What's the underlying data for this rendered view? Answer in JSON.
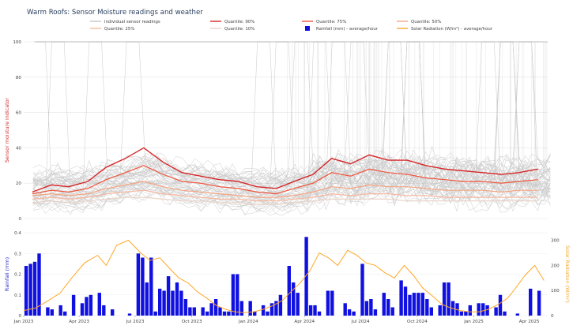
{
  "title": "Warm Roofs: Sensor Moisture readings and weather",
  "colors": {
    "q90": "#d62728",
    "q75": "#ef553b",
    "q50": "#f4a582",
    "q25": "#f7b9a0",
    "q10": "#e8d4c8",
    "individual": "#9e9e9e",
    "rain": "#1010e0",
    "solar": "#ffa726",
    "left_axis": "#d62728",
    "rain_axis": "#1f1fcc",
    "solar_axis": "#f5a623"
  },
  "legend": [
    {
      "label": "individual sensor readings",
      "kind": "line",
      "color_key": "individual"
    },
    {
      "label": "Quantile: 90%",
      "kind": "line",
      "color_key": "q90"
    },
    {
      "label": "Quantile: 75%",
      "kind": "line",
      "color_key": "q75"
    },
    {
      "label": "Quantile: 50%",
      "kind": "line",
      "color_key": "q50"
    },
    {
      "label": "Quantile: 25%",
      "kind": "line",
      "color_key": "q25"
    },
    {
      "label": "Quantile: 10%",
      "kind": "line",
      "color_key": "q10"
    },
    {
      "label": "Rainfall (mm) - average/hour",
      "kind": "square",
      "color_key": "rain"
    },
    {
      "label": "Solar Radiation (W/m²) - average/hour",
      "kind": "line",
      "color_key": "solar"
    }
  ],
  "chart_data": [
    {
      "type": "line",
      "ylabel": "Sensor moisture indicator",
      "ylim": [
        0,
        100
      ],
      "yticks": [
        "0",
        "20",
        "40",
        "60",
        "80",
        "100"
      ],
      "x_range": [
        "2023-01-01",
        "2025-05-01"
      ],
      "series": [
        {
          "name": "Quantile: 90%",
          "x": [
            "2023-01",
            "2023-02",
            "2023-03",
            "2023-04",
            "2023-05",
            "2023-06",
            "2023-07",
            "2023-08",
            "2023-09",
            "2023-10",
            "2023-11",
            "2023-12",
            "2024-01",
            "2024-02",
            "2024-03",
            "2024-04",
            "2024-05",
            "2024-06",
            "2024-07",
            "2024-08",
            "2024-09",
            "2024-10",
            "2024-11",
            "2024-12",
            "2025-01",
            "2025-02",
            "2025-03",
            "2025-04"
          ],
          "y": [
            15,
            19,
            18,
            21,
            29,
            34,
            40,
            32,
            26,
            24,
            22,
            21,
            18,
            17,
            21,
            25,
            34,
            31,
            36,
            33,
            33,
            30,
            28,
            27,
            26,
            25,
            26,
            28
          ]
        },
        {
          "name": "Quantile: 75%",
          "x": [
            "2023-01",
            "2023-02",
            "2023-03",
            "2023-04",
            "2023-05",
            "2023-06",
            "2023-07",
            "2023-08",
            "2023-09",
            "2023-10",
            "2023-11",
            "2023-12",
            "2024-01",
            "2024-02",
            "2024-03",
            "2024-04",
            "2024-05",
            "2024-06",
            "2024-07",
            "2024-08",
            "2024-09",
            "2024-10",
            "2024-11",
            "2024-12",
            "2025-01",
            "2025-02",
            "2025-03",
            "2025-04"
          ],
          "y": [
            14,
            16,
            15,
            17,
            22,
            26,
            30,
            25,
            21,
            20,
            18,
            17,
            15,
            14,
            17,
            20,
            26,
            24,
            28,
            26,
            25,
            23,
            22,
            21,
            21,
            20,
            21,
            22
          ]
        },
        {
          "name": "Quantile: 50%",
          "x": [
            "2023-01",
            "2023-02",
            "2023-03",
            "2023-04",
            "2023-05",
            "2023-06",
            "2023-07",
            "2023-08",
            "2023-09",
            "2023-10",
            "2023-11",
            "2023-12",
            "2024-01",
            "2024-02",
            "2024-03",
            "2024-04",
            "2024-05",
            "2024-06",
            "2024-07",
            "2024-08",
            "2024-09",
            "2024-10",
            "2024-11",
            "2024-12",
            "2025-01",
            "2025-02",
            "2025-03",
            "2025-04"
          ],
          "y": [
            13,
            14,
            13,
            14,
            17,
            19,
            21,
            18,
            16,
            15,
            14,
            13,
            12,
            12,
            13,
            15,
            18,
            17,
            19,
            18,
            18,
            17,
            16,
            16,
            16,
            15,
            16,
            16
          ]
        },
        {
          "name": "Quantile: 25%",
          "x": [
            "2023-01",
            "2023-02",
            "2023-03",
            "2023-04",
            "2023-05",
            "2023-06",
            "2023-07",
            "2023-08",
            "2023-09",
            "2023-10",
            "2023-11",
            "2023-12",
            "2024-01",
            "2024-02",
            "2024-03",
            "2024-04",
            "2024-05",
            "2024-06",
            "2024-07",
            "2024-08",
            "2024-09",
            "2024-10",
            "2024-11",
            "2024-12",
            "2025-01",
            "2025-02",
            "2025-03",
            "2025-04"
          ],
          "y": [
            11,
            12,
            11,
            12,
            14,
            15,
            16,
            14,
            13,
            12,
            11,
            11,
            10,
            10,
            11,
            12,
            14,
            13,
            14,
            14,
            13,
            13,
            12,
            12,
            12,
            12,
            12,
            12
          ]
        },
        {
          "name": "Quantile: 10%",
          "x": [
            "2023-01",
            "2023-02",
            "2023-03",
            "2023-04",
            "2023-05",
            "2023-06",
            "2023-07",
            "2023-08",
            "2023-09",
            "2023-10",
            "2023-11",
            "2023-12",
            "2024-01",
            "2024-02",
            "2024-03",
            "2024-04",
            "2024-05",
            "2024-06",
            "2024-07",
            "2024-08",
            "2024-09",
            "2024-10",
            "2024-11",
            "2024-12",
            "2025-01",
            "2025-02",
            "2025-03",
            "2025-04"
          ],
          "y": [
            9,
            10,
            9,
            10,
            11,
            12,
            12,
            11,
            10,
            10,
            9,
            9,
            8,
            8,
            9,
            10,
            11,
            11,
            11,
            11,
            10,
            10,
            10,
            10,
            10,
            10,
            10,
            10
          ]
        }
      ]
    },
    {
      "type": "bar",
      "ylabel": "Rainfall (mm)",
      "y2label": "Solar Radiation (W/m²)",
      "ylim": [
        0,
        0.4
      ],
      "y2lim": [
        0,
        330
      ],
      "yticks": [
        "0",
        "0.1",
        "0.2",
        "0.3",
        "0.4"
      ],
      "y2ticks": [
        "0",
        "100",
        "200",
        "300"
      ],
      "x_ticks": [
        "Jan 2023",
        "Apr 2023",
        "Jul 2023",
        "Oct 2023",
        "Jan 2024",
        "Apr 2024",
        "Jul 2024",
        "Oct 2024",
        "Jan 2025",
        "Apr 2025"
      ],
      "series": [
        {
          "name": "Rainfall (mm) - average/hour",
          "x": [
            "2023-01-05",
            "2023-01-12",
            "2023-01-19",
            "2023-01-26",
            "2023-02-09",
            "2023-02-16",
            "2023-03-02",
            "2023-03-09",
            "2023-03-23",
            "2023-04-06",
            "2023-04-13",
            "2023-04-20",
            "2023-05-04",
            "2023-05-11",
            "2023-05-25",
            "2023-06-22",
            "2023-07-06",
            "2023-07-13",
            "2023-07-20",
            "2023-07-27",
            "2023-08-03",
            "2023-08-10",
            "2023-08-17",
            "2023-08-24",
            "2023-08-31",
            "2023-09-07",
            "2023-09-14",
            "2023-09-21",
            "2023-09-28",
            "2023-10-05",
            "2023-10-19",
            "2023-10-26",
            "2023-11-02",
            "2023-11-09",
            "2023-11-16",
            "2023-11-23",
            "2023-11-30",
            "2023-12-07",
            "2023-12-14",
            "2023-12-21",
            "2024-01-04",
            "2024-01-11",
            "2024-01-25",
            "2024-02-01",
            "2024-02-08",
            "2024-02-15",
            "2024-02-22",
            "2024-03-07",
            "2024-03-14",
            "2024-03-21",
            "2024-04-04",
            "2024-04-11",
            "2024-04-18",
            "2024-04-25",
            "2024-05-09",
            "2024-05-16",
            "2024-06-06",
            "2024-06-13",
            "2024-06-20",
            "2024-07-04",
            "2024-07-11",
            "2024-07-18",
            "2024-07-25",
            "2024-08-08",
            "2024-08-15",
            "2024-08-22",
            "2024-09-05",
            "2024-09-12",
            "2024-09-19",
            "2024-09-26",
            "2024-10-03",
            "2024-10-10",
            "2024-10-17",
            "2024-10-24",
            "2024-11-07",
            "2024-11-14",
            "2024-11-21",
            "2024-11-28",
            "2024-12-05",
            "2024-12-12",
            "2024-12-19",
            "2024-12-26",
            "2025-01-09",
            "2025-01-16",
            "2025-01-23",
            "2025-02-06",
            "2025-02-13",
            "2025-02-20",
            "2025-03-13",
            "2025-04-03",
            "2025-04-17"
          ],
          "values": [
            0.24,
            0.25,
            0.26,
            0.3,
            0.04,
            0.03,
            0.05,
            0.02,
            0.1,
            0.06,
            0.09,
            0.1,
            0.11,
            0.05,
            0.03,
            0.01,
            0.3,
            0.28,
            0.16,
            0.28,
            0.02,
            0.13,
            0.12,
            0.19,
            0.12,
            0.16,
            0.12,
            0.08,
            0.04,
            0.04,
            0.04,
            0.02,
            0.06,
            0.08,
            0.04,
            0.02,
            0.02,
            0.2,
            0.2,
            0.07,
            0.07,
            0.02,
            0.05,
            0.02,
            0.06,
            0.07,
            0.1,
            0.24,
            0.16,
            0.11,
            0.38,
            0.05,
            0.05,
            0.02,
            0.12,
            0.12,
            0.06,
            0.03,
            0.02,
            0.25,
            0.07,
            0.08,
            0.03,
            0.11,
            0.08,
            0.04,
            0.17,
            0.14,
            0.1,
            0.11,
            0.11,
            0.11,
            0.08,
            0.04,
            0.05,
            0.16,
            0.16,
            0.07,
            0.06,
            0.02,
            0.02,
            0.05,
            0.06,
            0.06,
            0.05,
            0.04,
            0.1,
            0.02,
            0.01,
            0.13,
            0.12
          ]
        },
        {
          "name": "Solar Radiation (W/m²) - average/hour",
          "x": [
            "2023-01-01",
            "2023-01-20",
            "2023-02-10",
            "2023-03-01",
            "2023-03-20",
            "2023-04-10",
            "2023-05-01",
            "2023-05-15",
            "2023-06-01",
            "2023-06-20",
            "2023-07-10",
            "2023-07-25",
            "2023-08-10",
            "2023-08-25",
            "2023-09-10",
            "2023-09-25",
            "2023-10-10",
            "2023-10-25",
            "2023-11-10",
            "2023-11-25",
            "2023-12-10",
            "2023-12-25",
            "2024-01-10",
            "2024-01-25",
            "2024-02-10",
            "2024-02-25",
            "2024-03-10",
            "2024-03-25",
            "2024-04-10",
            "2024-04-25",
            "2024-05-10",
            "2024-05-25",
            "2024-06-10",
            "2024-06-25",
            "2024-07-10",
            "2024-07-25",
            "2024-08-10",
            "2024-08-25",
            "2024-09-10",
            "2024-09-25",
            "2024-10-10",
            "2024-10-25",
            "2024-11-10",
            "2024-11-25",
            "2024-12-10",
            "2024-12-25",
            "2025-01-10",
            "2025-01-25",
            "2025-02-10",
            "2025-02-25",
            "2025-03-10",
            "2025-03-25",
            "2025-04-10",
            "2025-04-25"
          ],
          "values": [
            20,
            30,
            60,
            90,
            150,
            210,
            240,
            200,
            280,
            300,
            250,
            220,
            230,
            190,
            150,
            130,
            95,
            70,
            40,
            25,
            15,
            12,
            15,
            25,
            40,
            60,
            95,
            130,
            180,
            250,
            230,
            200,
            260,
            240,
            210,
            200,
            170,
            150,
            200,
            160,
            110,
            80,
            45,
            30,
            20,
            15,
            15,
            25,
            45,
            70,
            110,
            160,
            200,
            140
          ]
        }
      ]
    }
  ]
}
